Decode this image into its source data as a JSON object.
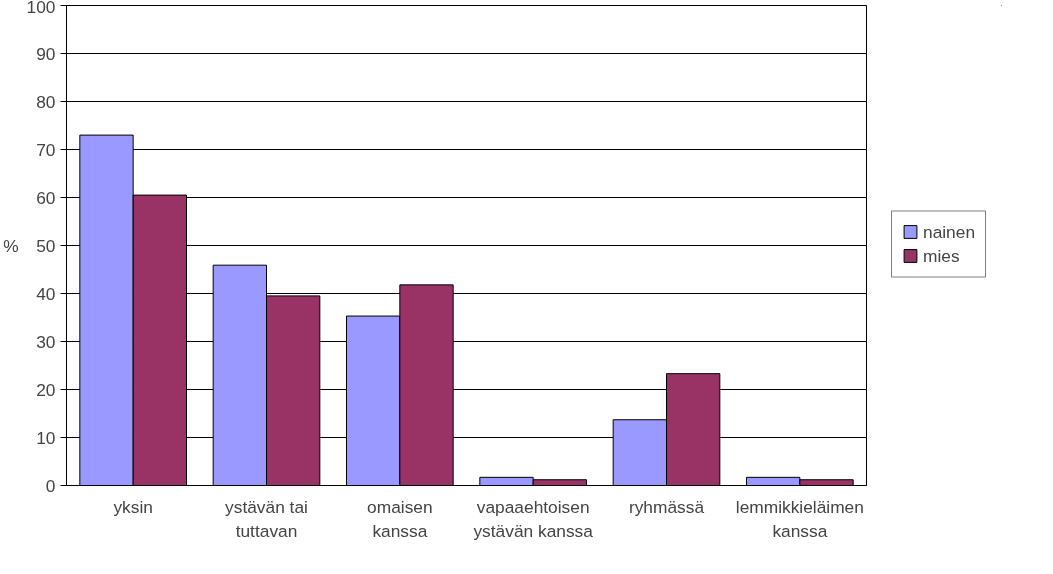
{
  "chart_data": {
    "type": "bar",
    "ylabel": "%",
    "categories": [
      "yksin",
      "ystävän tai\ntuttavan",
      "omaisen\nkanssa",
      "vapaaehtoisen\nystävän kanssa",
      "ryhmässä",
      "lemmikkieläimen\nkanssa"
    ],
    "series": [
      {
        "name": "nainen",
        "color": "#9999ff",
        "values": [
          73.0,
          45.9,
          35.3,
          1.7,
          13.7,
          1.7
        ]
      },
      {
        "name": "mies",
        "color": "#993366",
        "values": [
          60.5,
          39.5,
          41.8,
          1.2,
          23.3,
          1.2
        ]
      }
    ],
    "ylim": [
      0,
      100
    ],
    "yticks": [
      0,
      10,
      20,
      30,
      40,
      50,
      60,
      70,
      80,
      90,
      100
    ],
    "grid": "y",
    "legend": "right"
  }
}
